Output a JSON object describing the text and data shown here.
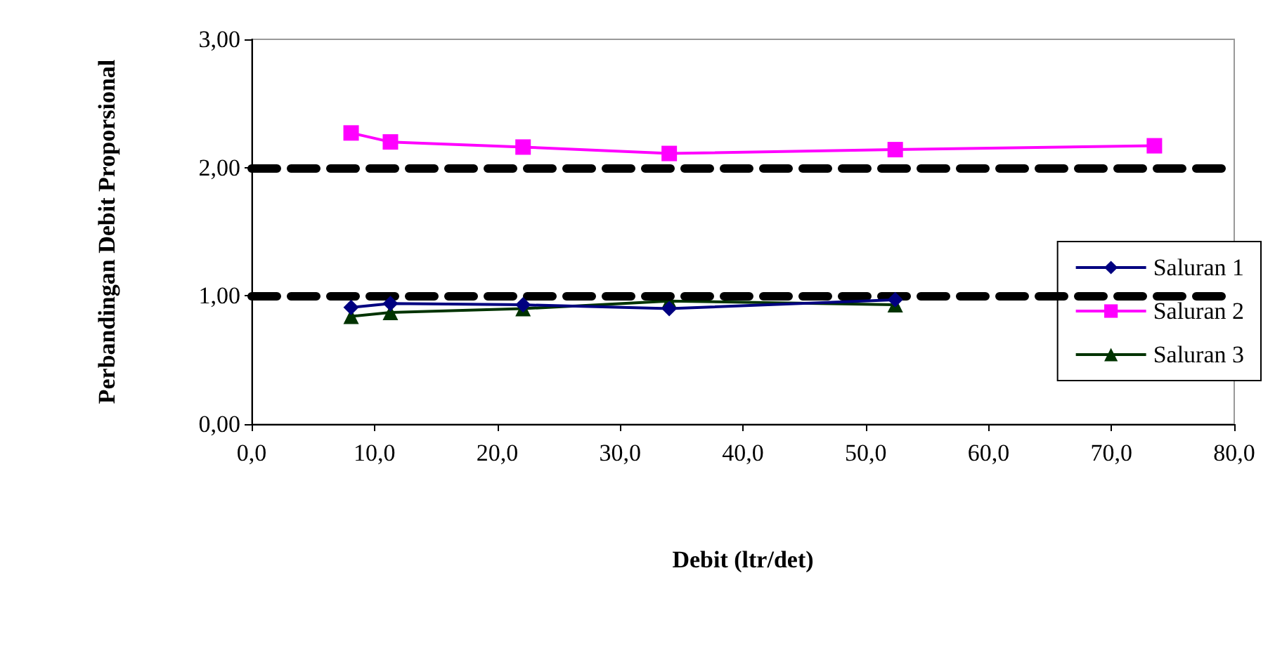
{
  "chart_data": {
    "type": "line",
    "xlabel": "Debit (ltr/det)",
    "ylabel": "Perbandingan Debit Proporsional",
    "x": [
      8.1,
      11.3,
      22.1,
      34.0,
      52.4,
      73.5
    ],
    "series": [
      {
        "name": "Saluran 1",
        "color": "#000080",
        "marker": "diamond",
        "values": [
          0.91,
          0.94,
          0.93,
          0.9,
          0.97,
          null
        ]
      },
      {
        "name": "Saluran 2",
        "color": "#ff00ff",
        "marker": "square",
        "values": [
          2.27,
          2.2,
          2.16,
          2.11,
          2.14,
          2.17
        ]
      },
      {
        "name": "Saluran 3",
        "color": "#003300",
        "marker": "triangle",
        "values": [
          0.84,
          0.87,
          0.9,
          0.96,
          0.93,
          null
        ]
      }
    ],
    "xlim": [
      0,
      80
    ],
    "xticks": [
      {
        "value": 0,
        "label": "0,0"
      },
      {
        "value": 10,
        "label": "10,0"
      },
      {
        "value": 20,
        "label": "20,0"
      },
      {
        "value": 30,
        "label": "30,0"
      },
      {
        "value": 40,
        "label": "40,0"
      },
      {
        "value": 50,
        "label": "50,0"
      },
      {
        "value": 60,
        "label": "60,0"
      },
      {
        "value": 70,
        "label": "70,0"
      },
      {
        "value": 80,
        "label": "80,0"
      }
    ],
    "ylim": [
      0,
      3
    ],
    "yticks": [
      {
        "value": 0,
        "label": "0,00"
      },
      {
        "value": 1,
        "label": "1,00"
      },
      {
        "value": 2,
        "label": "2,00"
      },
      {
        "value": 3,
        "label": "3,00"
      }
    ],
    "ref_lines": [
      {
        "axis": "y",
        "value": 1,
        "color": "#000000",
        "line_style": "dashed"
      },
      {
        "axis": "y",
        "value": 2,
        "color": "#000000",
        "line_style": "dashed"
      }
    ],
    "grid": false,
    "legend": "right"
  }
}
